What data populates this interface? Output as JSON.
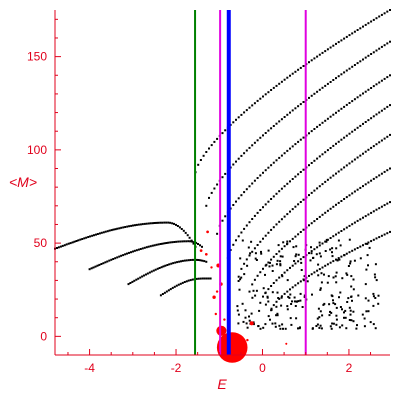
{
  "chart_data": {
    "type": "scatter",
    "xlabel": "E",
    "ylabel": "<M>",
    "xlim": [
      -4.8,
      2.95
    ],
    "ylim": [
      -10,
      175
    ],
    "grid": false,
    "axis_color": "#e0001b",
    "point_color": "#000000",
    "x_ticks": [
      {
        "value": -4,
        "label": "-4"
      },
      {
        "value": -2,
        "label": "-2"
      },
      {
        "value": 0,
        "label": "0"
      },
      {
        "value": 2,
        "label": "2"
      }
    ],
    "y_ticks": [
      {
        "value": 0,
        "label": "0"
      },
      {
        "value": 50,
        "label": "50"
      },
      {
        "value": 100,
        "label": "100"
      },
      {
        "value": 150,
        "label": "150"
      }
    ],
    "vertical_lines": [
      {
        "x": -1.56,
        "color": "#008000",
        "width": 2
      },
      {
        "x": -0.98,
        "color": "#e000e0",
        "width": 2
      },
      {
        "x": -0.78,
        "color": "#0000ff",
        "width": 4
      },
      {
        "x": 1.0,
        "color": "#e000e0",
        "width": 2
      }
    ],
    "curves": [
      {
        "x_start": -4.8,
        "x_peak": -2.2,
        "y_peak": 61,
        "y_start": 47,
        "x_end": -1.55,
        "y_end": 48
      },
      {
        "x_start": -4.0,
        "x_peak": -1.7,
        "y_peak": 51,
        "y_start": 36,
        "x_end": -1.4,
        "y_end": 48
      },
      {
        "x_start": -3.1,
        "x_peak": -1.55,
        "y_peak": 41,
        "y_start": 28,
        "x_end": -1.3,
        "y_end": 40
      },
      {
        "x_start": -2.35,
        "x_peak": -1.4,
        "y_peak": 31,
        "y_start": 22,
        "x_end": -1.2,
        "y_end": 31
      }
    ],
    "arcs": [
      {
        "x0": -1.55,
        "y0": 88,
        "x1": 2.95,
        "y1": 175
      },
      {
        "x0": -1.3,
        "y0": 70,
        "x1": 2.95,
        "y1": 158
      },
      {
        "x0": -1.05,
        "y0": 55,
        "x1": 2.95,
        "y1": 140
      },
      {
        "x0": -0.8,
        "y0": 42,
        "x1": 2.95,
        "y1": 124
      },
      {
        "x0": -0.55,
        "y0": 32,
        "x1": 2.95,
        "y1": 108
      },
      {
        "x0": -0.3,
        "y0": 24,
        "x1": 2.95,
        "y1": 90
      },
      {
        "x0": -0.05,
        "y0": 18,
        "x1": 2.95,
        "y1": 72
      },
      {
        "x0": 0.2,
        "y0": 14,
        "x1": 2.95,
        "y1": 56
      }
    ],
    "red_points": [
      {
        "x": -0.7,
        "y": -6,
        "size": 9
      },
      {
        "x": -0.95,
        "y": 3,
        "size": 3
      },
      {
        "x": -0.45,
        "y": -6,
        "size": 1.5
      },
      {
        "x": -0.25,
        "y": 7,
        "size": 1.2
      },
      {
        "x": -1.02,
        "y": 38,
        "size": 1.2
      },
      {
        "x": -1.12,
        "y": 21,
        "size": 1.0
      },
      {
        "x": -0.96,
        "y": 28,
        "size": 1.0
      },
      {
        "x": -1.27,
        "y": 56,
        "size": 0.8
      },
      {
        "x": -1.3,
        "y": 44,
        "size": 0.8
      },
      {
        "x": -1.42,
        "y": 46,
        "size": 0.8
      },
      {
        "x": -1.18,
        "y": 37,
        "size": 0.7
      },
      {
        "x": -1.05,
        "y": 24,
        "size": 0.7
      },
      {
        "x": -0.88,
        "y": 9,
        "size": 0.7
      },
      {
        "x": -1.08,
        "y": 12,
        "size": 0.7
      },
      {
        "x": -0.35,
        "y": -2,
        "size": 0.7
      },
      {
        "x": 0.55,
        "y": -4,
        "size": 0.6
      }
    ],
    "noise_region": {
      "x_min": -0.6,
      "x_max": 2.7,
      "y_min": 4,
      "y_max": 52,
      "count": 260
    }
  }
}
